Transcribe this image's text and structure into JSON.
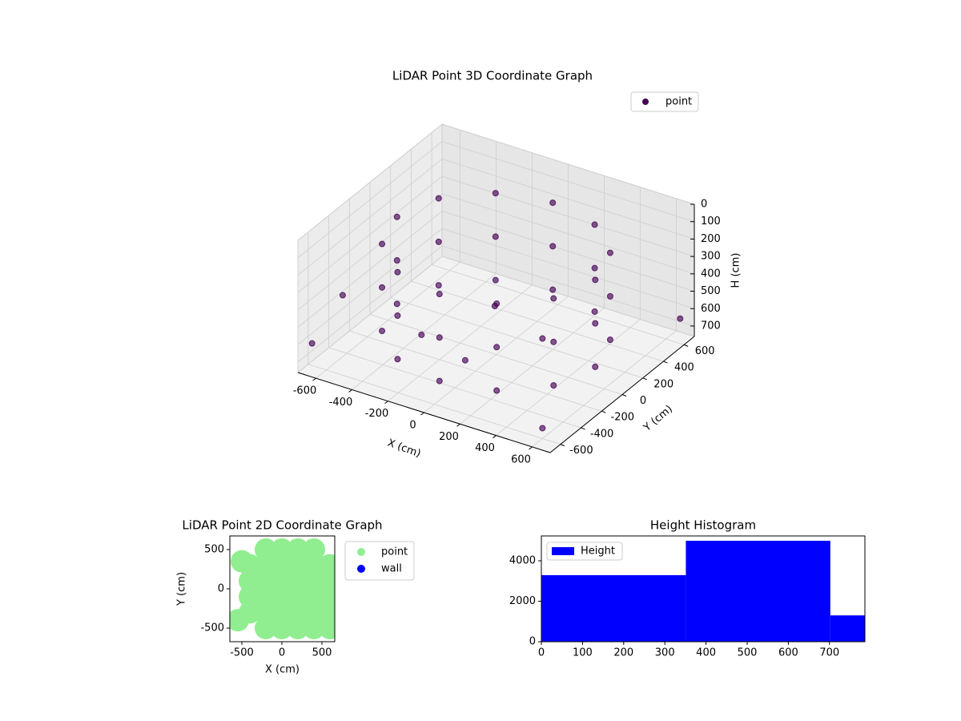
{
  "chart_data": [
    {
      "type": "scatter3d",
      "title": "LiDAR Point 3D Coordinate Graph",
      "xlabel": "X (cm)",
      "ylabel": "Y (cm)",
      "zlabel": "H (cm)",
      "xlim": [
        -700,
        700
      ],
      "ylim": [
        -700,
        700
      ],
      "zlim": [
        760,
        0
      ],
      "xticks": [
        -600,
        -400,
        -200,
        0,
        200,
        400,
        600
      ],
      "yticks": [
        -600,
        -400,
        -200,
        0,
        200,
        400,
        600
      ],
      "zticks": [
        0,
        100,
        200,
        300,
        400,
        500,
        600,
        700
      ],
      "grid": true,
      "legend": "upper right",
      "series": [
        {
          "name": "point",
          "color": "#440154",
          "x": [
            550,
            476,
            275,
            0,
            -275,
            -476,
            -550,
            -476,
            -275,
            0,
            275,
            476,
            550,
            476,
            275,
            0,
            -275,
            -476,
            -550,
            -476,
            -275,
            0,
            275,
            476,
            550,
            476,
            275,
            0,
            -275,
            -476,
            -550,
            -476,
            -275,
            0,
            275,
            476,
            -300,
            0,
            200,
            -150,
            -650,
            -680,
            600,
            650
          ],
          "y": [
            0,
            275,
            476,
            550,
            476,
            275,
            0,
            -275,
            -476,
            -550,
            -476,
            -275,
            0,
            275,
            476,
            550,
            476,
            275,
            0,
            -275,
            -476,
            -550,
            -476,
            -275,
            0,
            275,
            476,
            550,
            476,
            275,
            0,
            -275,
            -476,
            -550,
            -476,
            -275,
            -200,
            -300,
            100,
            250,
            -650,
            -300,
            -600,
            650
          ],
          "z": [
            150,
            150,
            150,
            150,
            150,
            150,
            150,
            150,
            150,
            150,
            150,
            150,
            400,
            400,
            400,
            400,
            400,
            400,
            400,
            400,
            400,
            400,
            400,
            400,
            650,
            650,
            650,
            650,
            650,
            650,
            650,
            650,
            650,
            650,
            650,
            650,
            650,
            650,
            650,
            650,
            600,
            500,
            700,
            650
          ]
        }
      ]
    },
    {
      "type": "scatter",
      "title": "LiDAR Point 2D Coordinate Graph",
      "xlabel": "X (cm)",
      "ylabel": "Y (cm)",
      "xlim": [
        -650,
        660
      ],
      "ylim": [
        -673,
        673
      ],
      "xticks": [
        -500,
        0,
        500
      ],
      "yticks": [
        -500,
        0,
        500
      ],
      "legend": "outside right",
      "series": [
        {
          "name": "point",
          "color": "#90ee90",
          "x": [
            -400,
            -400,
            -400,
            -400,
            -200,
            -200,
            -200,
            -200,
            -200,
            -200,
            0,
            0,
            0,
            0,
            0,
            0,
            200,
            200,
            200,
            200,
            200,
            200,
            400,
            400,
            400,
            400,
            400,
            400,
            600,
            600,
            600,
            600,
            -550,
            -500,
            600
          ],
          "values": [
            -300,
            -100,
            100,
            300,
            -500,
            -300,
            -100,
            100,
            300,
            500,
            -500,
            -300,
            -100,
            100,
            300,
            500,
            -500,
            -300,
            -100,
            100,
            300,
            500,
            -500,
            -300,
            -100,
            100,
            300,
            500,
            -300,
            -100,
            100,
            300,
            -400,
            350,
            -500
          ]
        },
        {
          "name": "wall",
          "color": "#0000ff",
          "x": [],
          "values": []
        }
      ]
    },
    {
      "type": "histogram",
      "title": "Height Histogram",
      "bins": [
        0,
        351,
        702,
        786
      ],
      "xlim": [
        0,
        786
      ],
      "ylim": [
        0,
        5228
      ],
      "xticks": [
        0,
        100,
        200,
        300,
        400,
        500,
        600,
        700
      ],
      "yticks": [
        0,
        2000,
        4000
      ],
      "legend": "upper left",
      "series": [
        {
          "name": "Height",
          "color": "#0000ff",
          "values": [
            3290,
            4990,
            1300
          ]
        }
      ]
    }
  ]
}
